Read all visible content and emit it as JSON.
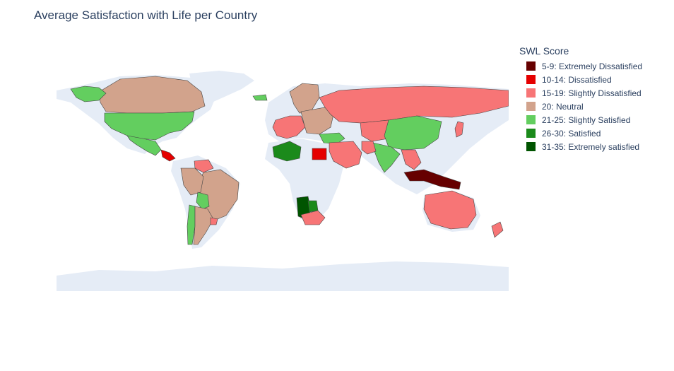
{
  "title": "Average Satisfaction with Life per Country",
  "legend": {
    "title": "SWL Score",
    "items": [
      {
        "label": "5-9: Extremely Dissatisfied",
        "color": "#660000",
        "name": "extremely-dissatisfied"
      },
      {
        "label": "10-14: Dissatisfied",
        "color": "#e50000",
        "name": "dissatisfied"
      },
      {
        "label": "15-19: Slightly Dissatisfied",
        "color": "#f77576",
        "name": "slightly-dissatisfied"
      },
      {
        "label": "20: Neutral",
        "color": "#d2a38c",
        "name": "neutral"
      },
      {
        "label": "21-25: Slightly Satisfied",
        "color": "#63ce5f",
        "name": "slightly-satisfied"
      },
      {
        "label": "26-30: Satisfied",
        "color": "#1b8a1b",
        "name": "satisfied"
      },
      {
        "label": "31-35: Extremely satisfied",
        "color": "#005400",
        "name": "extremely-satisfied"
      }
    ]
  },
  "map": {
    "projection": "equirectangular",
    "land_color": "#e5ecf6",
    "border_color": "#444444",
    "regions": [
      {
        "name": "canada",
        "category": "neutral"
      },
      {
        "name": "greenland",
        "category": "slightly-satisfied"
      },
      {
        "name": "united-states",
        "category": "slightly-satisfied"
      },
      {
        "name": "mexico",
        "category": "slightly-satisfied"
      },
      {
        "name": "central-america",
        "category": "dissatisfied"
      },
      {
        "name": "brazil",
        "category": "neutral"
      },
      {
        "name": "venezuela",
        "category": "slightly-dissatisfied"
      },
      {
        "name": "peru",
        "category": "neutral"
      },
      {
        "name": "bolivia",
        "category": "slightly-satisfied"
      },
      {
        "name": "chile",
        "category": "slightly-satisfied"
      },
      {
        "name": "argentina",
        "category": "neutral"
      },
      {
        "name": "uruguay",
        "category": "slightly-dissatisfied"
      },
      {
        "name": "iceland",
        "category": "slightly-satisfied"
      },
      {
        "name": "scandinavia",
        "category": "neutral"
      },
      {
        "name": "western-europe",
        "category": "slightly-dissatisfied"
      },
      {
        "name": "eastern-europe",
        "category": "neutral"
      },
      {
        "name": "russia",
        "category": "slightly-dissatisfied"
      },
      {
        "name": "turkey",
        "category": "slightly-satisfied"
      },
      {
        "name": "algeria",
        "category": "satisfied"
      },
      {
        "name": "egypt",
        "category": "dissatisfied"
      },
      {
        "name": "middle-east",
        "category": "slightly-dissatisfied"
      },
      {
        "name": "central-asia",
        "category": "slightly-dissatisfied"
      },
      {
        "name": "china",
        "category": "slightly-satisfied"
      },
      {
        "name": "india",
        "category": "slightly-satisfied"
      },
      {
        "name": "pakistan",
        "category": "slightly-dissatisfied"
      },
      {
        "name": "southeast-asia",
        "category": "slightly-dissatisfied"
      },
      {
        "name": "indonesia",
        "category": "extremely-dissatisfied"
      },
      {
        "name": "namibia",
        "category": "extremely-satisfied"
      },
      {
        "name": "botswana",
        "category": "satisfied"
      },
      {
        "name": "south-africa",
        "category": "slightly-dissatisfied"
      },
      {
        "name": "australia",
        "category": "slightly-dissatisfied"
      },
      {
        "name": "new-zealand",
        "category": "slightly-dissatisfied"
      },
      {
        "name": "japan",
        "category": "slightly-dissatisfied"
      }
    ]
  }
}
